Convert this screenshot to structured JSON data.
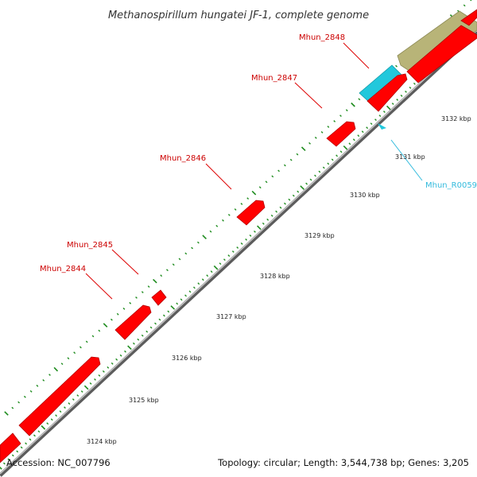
{
  "title": "Methanospirillum hungatei JF-1, complete genome",
  "footer": {
    "accession": "Accession: NC_007796",
    "topology": "Topology: circular; Length: 3,544,738 bp; Genes: 3,205"
  },
  "colors": {
    "cds": "#ff0000",
    "rna": "#22c8dc",
    "feature": "#b8b478",
    "label_cds": "#cc0000",
    "label_rna": "#33bbdd",
    "backbone": "#8a8a8a",
    "tick": "#1e8c1e"
  },
  "ticks": [
    {
      "label": "3124 kbp"
    },
    {
      "label": "3125 kbp"
    },
    {
      "label": "3126 kbp"
    },
    {
      "label": "3127 kbp"
    },
    {
      "label": "3128 kbp"
    },
    {
      "label": "3129 kbp"
    },
    {
      "label": "3130 kbp"
    },
    {
      "label": "3131 kbp"
    },
    {
      "label": "3132 kbp"
    }
  ],
  "gene_labels": [
    {
      "name": "Mhun_2844",
      "type": "cds"
    },
    {
      "name": "Mhun_2845",
      "type": "cds"
    },
    {
      "name": "Mhun_2846",
      "type": "cds"
    },
    {
      "name": "Mhun_2847",
      "type": "cds"
    },
    {
      "name": "Mhun_2848",
      "type": "cds"
    },
    {
      "name": "Mhun_R0059",
      "type": "rna"
    }
  ]
}
